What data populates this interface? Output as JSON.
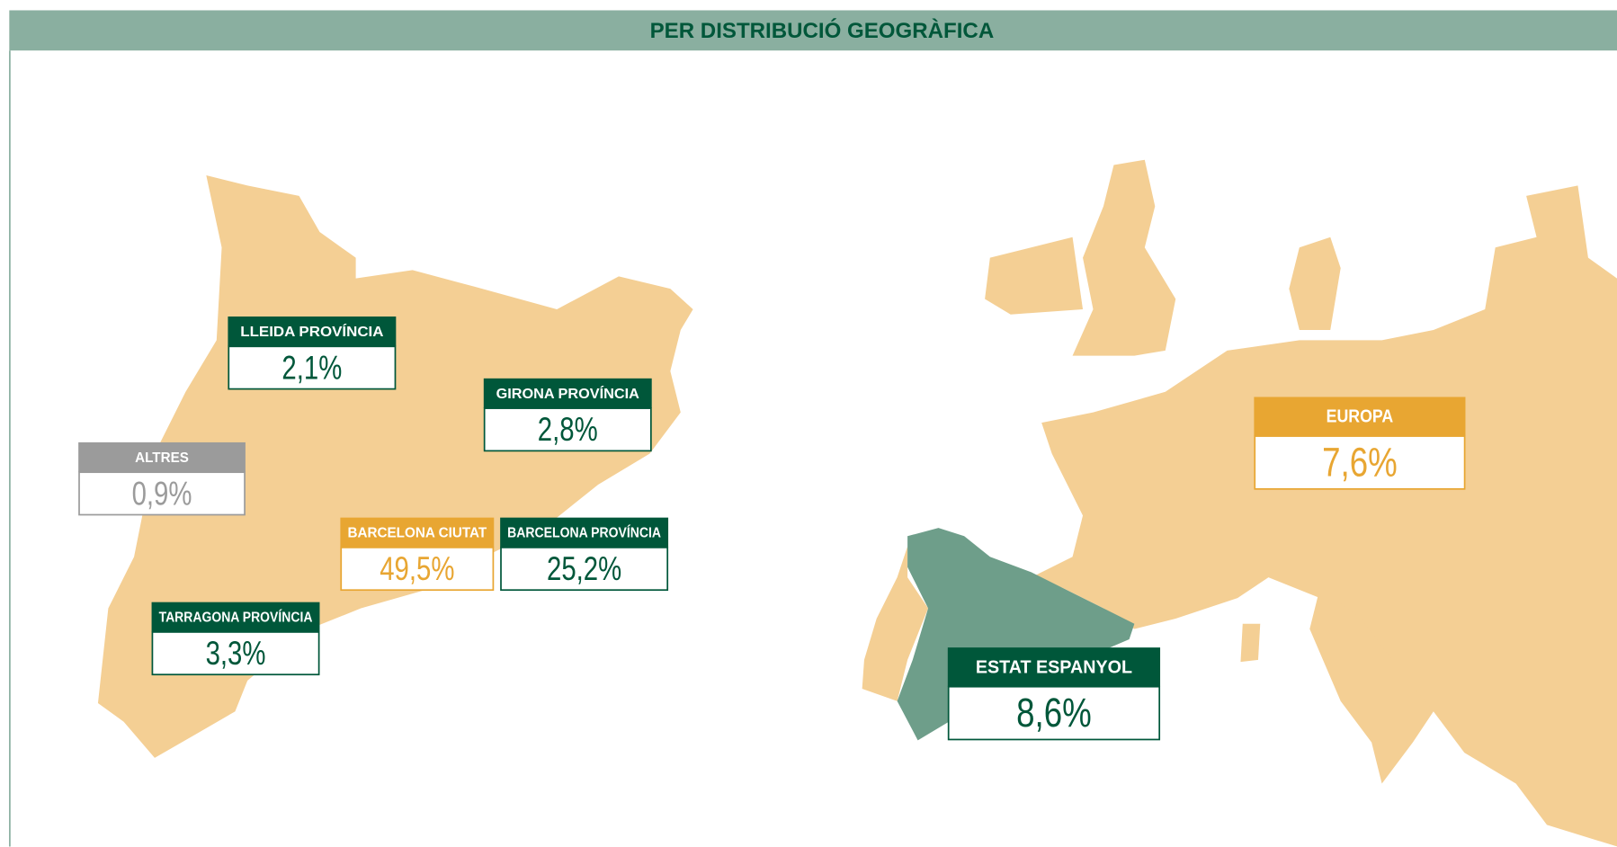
{
  "title": "PER DISTRIBUCIÓ GEOGRÀFICA",
  "regions": [
    {
      "name": "LLEIDA PROVÍNCIA",
      "value": "2,1%",
      "color": "#00573a"
    },
    {
      "name": "GIRONA PROVÍNCIA",
      "value": "2,8%",
      "color": "#00573a"
    },
    {
      "name": "ALTRES",
      "value": "0,9%",
      "color": "#9b9b9b"
    },
    {
      "name": "BARCELONA CIUTAT",
      "value": "49,5%",
      "color": "#e8a632"
    },
    {
      "name": "BARCELONA PROVÍNCIA",
      "value": "25,2%",
      "color": "#00573a"
    },
    {
      "name": "TARRAGONA PROVÍNCIA",
      "value": "3,3%",
      "color": "#00573a"
    },
    {
      "name": "EUROPA",
      "value": "7,6%",
      "color": "#e8a632"
    },
    {
      "name": "ESTAT ESPANYOL",
      "value": "8,6%",
      "color": "#00573a"
    }
  ]
}
